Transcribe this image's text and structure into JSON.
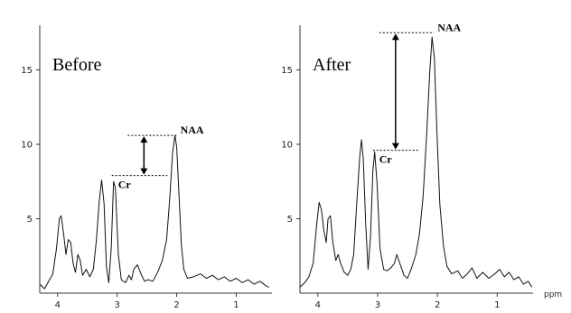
{
  "chart_data": [
    {
      "type": "line",
      "panel_label": "Before",
      "xlim": [
        4.3,
        0.4
      ],
      "ylim": [
        0,
        18
      ],
      "x_ticks": [
        4,
        3,
        2,
        1
      ],
      "y_ticks": [
        5,
        10,
        15
      ],
      "xlabel": "",
      "spectrum": [
        [
          4.3,
          0.6
        ],
        [
          4.22,
          0.3
        ],
        [
          4.15,
          0.8
        ],
        [
          4.08,
          1.3
        ],
        [
          4.02,
          3.0
        ],
        [
          3.97,
          5.0
        ],
        [
          3.94,
          5.2
        ],
        [
          3.9,
          4.0
        ],
        [
          3.86,
          2.6
        ],
        [
          3.82,
          3.6
        ],
        [
          3.78,
          3.4
        ],
        [
          3.74,
          2.0
        ],
        [
          3.7,
          1.4
        ],
        [
          3.66,
          2.6
        ],
        [
          3.62,
          2.2
        ],
        [
          3.58,
          1.2
        ],
        [
          3.52,
          1.6
        ],
        [
          3.46,
          1.1
        ],
        [
          3.4,
          1.6
        ],
        [
          3.35,
          3.5
        ],
        [
          3.3,
          6.2
        ],
        [
          3.26,
          7.6
        ],
        [
          3.22,
          6.0
        ],
        [
          3.18,
          1.8
        ],
        [
          3.14,
          0.7
        ],
        [
          3.1,
          3.0
        ],
        [
          3.06,
          7.5
        ],
        [
          3.03,
          7.1
        ],
        [
          2.98,
          2.6
        ],
        [
          2.93,
          0.9
        ],
        [
          2.86,
          0.7
        ],
        [
          2.8,
          1.2
        ],
        [
          2.76,
          0.9
        ],
        [
          2.72,
          1.6
        ],
        [
          2.66,
          1.9
        ],
        [
          2.6,
          1.3
        ],
        [
          2.54,
          0.8
        ],
        [
          2.48,
          0.9
        ],
        [
          2.4,
          0.8
        ],
        [
          2.32,
          1.4
        ],
        [
          2.24,
          2.2
        ],
        [
          2.17,
          3.6
        ],
        [
          2.12,
          6.2
        ],
        [
          2.07,
          9.4
        ],
        [
          2.03,
          10.6
        ],
        [
          2.0,
          9.8
        ],
        [
          1.96,
          6.5
        ],
        [
          1.92,
          3.2
        ],
        [
          1.88,
          1.6
        ],
        [
          1.82,
          1.0
        ],
        [
          1.72,
          1.1
        ],
        [
          1.6,
          1.3
        ],
        [
          1.5,
          1.0
        ],
        [
          1.4,
          1.2
        ],
        [
          1.3,
          0.9
        ],
        [
          1.2,
          1.1
        ],
        [
          1.1,
          0.8
        ],
        [
          1.0,
          1.0
        ],
        [
          0.9,
          0.7
        ],
        [
          0.8,
          0.9
        ],
        [
          0.7,
          0.6
        ],
        [
          0.6,
          0.8
        ],
        [
          0.5,
          0.5
        ],
        [
          0.45,
          0.4
        ]
      ],
      "annotations": [
        {
          "text": "NAA",
          "x": 2.03,
          "y": 10.6
        },
        {
          "text": "Cr",
          "x": 3.06,
          "y": 7.5
        }
      ],
      "difference_arrow": {
        "x": 2.55,
        "y_top": 10.6,
        "y_bottom": 7.9
      }
    },
    {
      "type": "line",
      "panel_label": "After",
      "xlim": [
        4.3,
        0.4
      ],
      "ylim": [
        0,
        18
      ],
      "x_ticks": [
        4,
        3,
        2,
        1
      ],
      "y_ticks": [
        5,
        10,
        15
      ],
      "xlabel": "ppm",
      "spectrum": [
        [
          4.3,
          0.4
        ],
        [
          4.22,
          0.7
        ],
        [
          4.15,
          1.1
        ],
        [
          4.08,
          2.0
        ],
        [
          4.02,
          4.6
        ],
        [
          3.98,
          6.1
        ],
        [
          3.94,
          5.6
        ],
        [
          3.9,
          4.2
        ],
        [
          3.86,
          3.4
        ],
        [
          3.83,
          5.0
        ],
        [
          3.79,
          5.2
        ],
        [
          3.75,
          3.4
        ],
        [
          3.7,
          2.2
        ],
        [
          3.66,
          2.6
        ],
        [
          3.62,
          2.0
        ],
        [
          3.56,
          1.4
        ],
        [
          3.5,
          1.2
        ],
        [
          3.45,
          1.6
        ],
        [
          3.4,
          2.6
        ],
        [
          3.35,
          6.0
        ],
        [
          3.3,
          9.2
        ],
        [
          3.27,
          10.3
        ],
        [
          3.24,
          9.0
        ],
        [
          3.2,
          4.6
        ],
        [
          3.16,
          1.6
        ],
        [
          3.12,
          3.8
        ],
        [
          3.08,
          8.2
        ],
        [
          3.05,
          9.5
        ],
        [
          3.01,
          7.4
        ],
        [
          2.96,
          3.0
        ],
        [
          2.9,
          1.6
        ],
        [
          2.84,
          1.5
        ],
        [
          2.78,
          1.7
        ],
        [
          2.72,
          2.0
        ],
        [
          2.68,
          2.6
        ],
        [
          2.62,
          1.9
        ],
        [
          2.56,
          1.2
        ],
        [
          2.5,
          1.0
        ],
        [
          2.44,
          1.6
        ],
        [
          2.36,
          2.6
        ],
        [
          2.3,
          4.0
        ],
        [
          2.24,
          6.5
        ],
        [
          2.18,
          10.6
        ],
        [
          2.13,
          14.8
        ],
        [
          2.09,
          17.2
        ],
        [
          2.05,
          15.8
        ],
        [
          2.01,
          11.0
        ],
        [
          1.96,
          6.0
        ],
        [
          1.9,
          3.2
        ],
        [
          1.84,
          1.8
        ],
        [
          1.76,
          1.3
        ],
        [
          1.66,
          1.5
        ],
        [
          1.58,
          1.0
        ],
        [
          1.5,
          1.3
        ],
        [
          1.42,
          1.7
        ],
        [
          1.34,
          1.0
        ],
        [
          1.24,
          1.4
        ],
        [
          1.14,
          1.0
        ],
        [
          1.04,
          1.3
        ],
        [
          0.96,
          1.6
        ],
        [
          0.88,
          1.1
        ],
        [
          0.8,
          1.4
        ],
        [
          0.72,
          0.9
        ],
        [
          0.64,
          1.1
        ],
        [
          0.56,
          0.6
        ],
        [
          0.48,
          0.8
        ],
        [
          0.42,
          0.4
        ]
      ],
      "annotations": [
        {
          "text": "NAA",
          "x": 2.09,
          "y": 17.5
        },
        {
          "text": "Cr",
          "x": 3.05,
          "y": 9.5
        }
      ],
      "difference_arrow": {
        "x": 2.7,
        "y_top": 17.5,
        "y_bottom": 9.6
      }
    }
  ]
}
